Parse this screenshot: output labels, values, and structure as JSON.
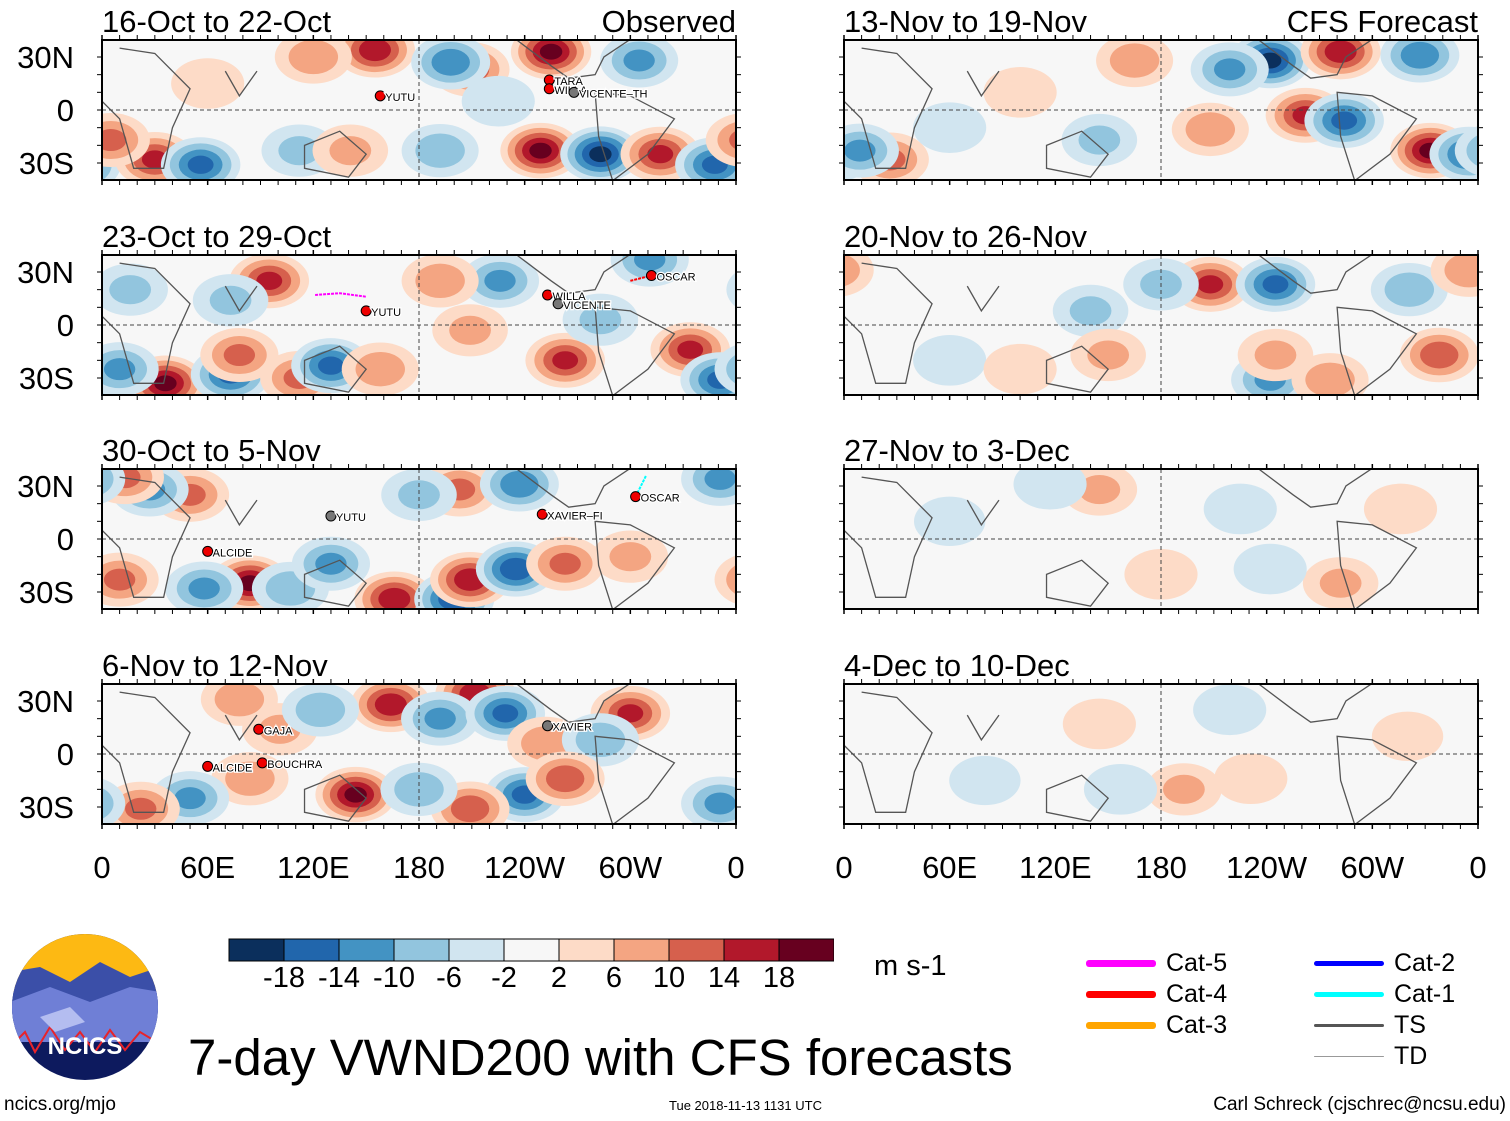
{
  "chart_data": {
    "type": "heatmap",
    "title": "7-day VWND200 with CFS forecasts",
    "units": "m s-1",
    "variable": "200-hPa meridional wind anomaly",
    "column_labels": [
      "Observed",
      "CFS Forecast"
    ],
    "lat_ticks": [
      "30N",
      "0",
      "30S"
    ],
    "lon_ticks": [
      "0",
      "60E",
      "120E",
      "180",
      "120W",
      "60W",
      "0"
    ],
    "colorbar": {
      "levels": [
        "-18",
        "-14",
        "-10",
        "-6",
        "-2",
        "2",
        "6",
        "10",
        "14",
        "18"
      ],
      "colors": [
        "#0b2f5c",
        "#2166ac",
        "#4393c3",
        "#92c5de",
        "#d1e5f0",
        "#f7f7f7",
        "#fddbc7",
        "#f4a582",
        "#d6604d",
        "#b2182b",
        "#67001f"
      ]
    },
    "panels": [
      {
        "title": "16-Oct to 22-Oct",
        "tag": "Observed",
        "col": 0,
        "row": 0,
        "anomalies": [
          [
            155,
            34,
            16
          ],
          [
            209,
            23,
            12
          ],
          [
            198,
            27,
            -12
          ],
          [
            249,
            -23,
            18
          ],
          [
            283,
            -25,
            -18
          ],
          [
            317,
            -25,
            14
          ],
          [
            348,
            -31,
            -14
          ],
          [
            30,
            -28,
            14
          ],
          [
            56,
            -31,
            -14
          ],
          [
            5,
            -17,
            10
          ],
          [
            255,
            33,
            18
          ],
          [
            305,
            28,
            -10
          ],
          [
            192,
            -23,
            -8
          ],
          [
            112,
            -23,
            -6
          ],
          [
            141,
            -23,
            6
          ],
          [
            120,
            30,
            8
          ],
          [
            225,
            5,
            -4
          ],
          [
            60,
            15,
            4
          ]
        ],
        "storms": [
          {
            "name": "YUTU",
            "lon": 158,
            "lat": 8,
            "cat": "Cat-4"
          },
          {
            "name": "TARA",
            "lon": 254,
            "lat": 17,
            "cat": "Cat-5"
          },
          {
            "name": "WILLA",
            "lon": 254,
            "lat": 12,
            "cat": "Cat-4"
          },
          {
            "name": "VICENTE–TH",
            "lon": 268,
            "lat": 10,
            "cat": "TS"
          }
        ]
      },
      {
        "title": "13-Nov to 19-Nov",
        "tag": "CFS Forecast",
        "col": 1,
        "row": 0,
        "anomalies": [
          [
            242,
            28,
            -18
          ],
          [
            282,
            33,
            16
          ],
          [
            262,
            -3,
            14
          ],
          [
            284,
            -6,
            -14
          ],
          [
            333,
            -23,
            18
          ],
          [
            355,
            -25,
            -14
          ],
          [
            219,
            23,
            -10
          ],
          [
            208,
            -11,
            8
          ],
          [
            165,
            28,
            8
          ],
          [
            327,
            31,
            -12
          ],
          [
            26,
            -28,
            10
          ],
          [
            9,
            -23,
            -10
          ],
          [
            145,
            -17,
            -6
          ],
          [
            100,
            10,
            4
          ],
          [
            60,
            -10,
            -4
          ]
        ],
        "storms": []
      },
      {
        "title": "23-Oct to 29-Oct",
        "col": 0,
        "row": 1,
        "anomalies": [
          [
            95,
            25,
            14
          ],
          [
            73,
            14,
            -6
          ],
          [
            36,
            -33,
            18
          ],
          [
            73,
            -28,
            -14
          ],
          [
            78,
            -17,
            10
          ],
          [
            112,
            -30,
            10
          ],
          [
            130,
            -23,
            -14
          ],
          [
            158,
            -25,
            8
          ],
          [
            226,
            25,
            -10
          ],
          [
            263,
            -20,
            14
          ],
          [
            209,
            -3,
            6
          ],
          [
            334,
            -14,
            14
          ],
          [
            351,
            -31,
            -14
          ],
          [
            311,
            37,
            -10
          ],
          [
            192,
            25,
            8
          ],
          [
            283,
            3,
            -6
          ],
          [
            16,
            20,
            -6
          ],
          [
            10,
            -25,
            -10
          ]
        ],
        "storms": [
          {
            "name": "YUTU",
            "lon": 150,
            "lat": 8,
            "cat": "Cat-5",
            "track": [
              [
                121,
                17
              ],
              [
                135,
                18
              ],
              [
                150,
                16
              ]
            ]
          },
          {
            "name": "WILLA",
            "lon": 253,
            "lat": 17,
            "cat": "Cat-3"
          },
          {
            "name": "VICENTE",
            "lon": 259,
            "lat": 12,
            "cat": "TS"
          },
          {
            "name": "OSCAR",
            "lon": 312,
            "lat": 28,
            "cat": "Cat-4",
            "track": [
              [
                300,
                25
              ],
              [
                312,
                28
              ]
            ]
          }
        ]
      },
      {
        "title": "20-Nov to 26-Nov",
        "col": 1,
        "row": 1,
        "anomalies": [
          [
            208,
            23,
            14
          ],
          [
            245,
            23,
            -14
          ],
          [
            180,
            23,
            -6
          ],
          [
            338,
            -17,
            12
          ],
          [
            242,
            -31,
            -10
          ],
          [
            276,
            -31,
            8
          ],
          [
            245,
            -17,
            6
          ],
          [
            140,
            8,
            -6
          ],
          [
            150,
            -17,
            6
          ],
          [
            321,
            20,
            -8
          ],
          [
            355,
            31,
            8
          ],
          [
            60,
            -20,
            -4
          ],
          [
            100,
            -25,
            4
          ]
        ],
        "storms": []
      },
      {
        "title": "30-Oct to 5-Nov",
        "col": 0,
        "row": 2,
        "anomalies": [
          [
            50,
            25,
            10
          ],
          [
            27,
            28,
            -10
          ],
          [
            13,
            35,
            10
          ],
          [
            84,
            -25,
            18
          ],
          [
            58,
            -28,
            -10
          ],
          [
            10,
            -23,
            10
          ],
          [
            107,
            -28,
            -8
          ],
          [
            166,
            -34,
            16
          ],
          [
            200,
            -34,
            -16
          ],
          [
            209,
            -23,
            16
          ],
          [
            235,
            -17,
            -16
          ],
          [
            263,
            -14,
            10
          ],
          [
            203,
            28,
            10
          ],
          [
            237,
            31,
            -12
          ],
          [
            351,
            34,
            -10
          ],
          [
            130,
            -14,
            -10
          ],
          [
            180,
            25,
            -6
          ],
          [
            300,
            -10,
            6
          ]
        ],
        "storms": [
          {
            "name": "YUTU",
            "lon": 130,
            "lat": 13,
            "cat": "TS"
          },
          {
            "name": "XAVIER–FI",
            "lon": 250,
            "lat": 14,
            "cat": "Cat-4"
          },
          {
            "name": "OSCAR",
            "lon": 303,
            "lat": 24,
            "cat": "Cat-1",
            "track": [
              [
                303,
                24
              ],
              [
                309,
                36
              ]
            ]
          },
          {
            "name": "ALCIDE",
            "lon": 60,
            "lat": -7,
            "cat": "Cat-4"
          }
        ]
      },
      {
        "title": "27-Nov to 3-Dec",
        "col": 1,
        "row": 2,
        "anomalies": [
          [
            145,
            28,
            6
          ],
          [
            117,
            31,
            -4
          ],
          [
            225,
            17,
            -4
          ],
          [
            282,
            -25,
            6
          ],
          [
            242,
            -17,
            -4
          ],
          [
            316,
            17,
            4
          ],
          [
            60,
            10,
            -3
          ],
          [
            180,
            -20,
            4
          ]
        ],
        "storms": []
      },
      {
        "title": "6-Nov to 12-Nov",
        "col": 0,
        "row": 3,
        "anomalies": [
          [
            164,
            28,
            16
          ],
          [
            212,
            34,
            16
          ],
          [
            192,
            20,
            -10
          ],
          [
            229,
            23,
            -14
          ],
          [
            252,
            6,
            8
          ],
          [
            300,
            23,
            14
          ],
          [
            283,
            8,
            -8
          ],
          [
            144,
            -23,
            18
          ],
          [
            240,
            -23,
            -14
          ],
          [
            263,
            -14,
            12
          ],
          [
            209,
            -31,
            12
          ],
          [
            180,
            -20,
            -8
          ],
          [
            84,
            -14,
            8
          ],
          [
            50,
            -25,
            -10
          ],
          [
            22,
            -31,
            10
          ],
          [
            351,
            -28,
            -10
          ],
          [
            101,
            14,
            6
          ],
          [
            124,
            25,
            -8
          ],
          [
            78,
            31,
            8
          ]
        ],
        "storms": [
          {
            "name": "GAJA",
            "lon": 89,
            "lat": 14,
            "cat": "Cat-4"
          },
          {
            "name": "BOUCHRA",
            "lon": 91,
            "lat": -5,
            "cat": "Cat-4"
          },
          {
            "name": "ALCIDE",
            "lon": 60,
            "lat": -7,
            "cat": "Cat-4"
          },
          {
            "name": "XAVIER",
            "lon": 253,
            "lat": 16,
            "cat": "TS"
          }
        ]
      },
      {
        "title": "4-Dec to 10-Dec",
        "col": 1,
        "row": 3,
        "anomalies": [
          [
            145,
            17,
            4
          ],
          [
            219,
            25,
            -4
          ],
          [
            193,
            -20,
            6
          ],
          [
            157,
            -20,
            -4
          ],
          [
            231,
            -14,
            4
          ],
          [
            80,
            -15,
            -3
          ],
          [
            320,
            10,
            3
          ]
        ],
        "storms": []
      }
    ]
  },
  "legend": {
    "items": [
      {
        "label": "Cat-5",
        "color": "#ff00ff",
        "w": 7
      },
      {
        "label": "Cat-4",
        "color": "#ff0000",
        "w": 7
      },
      {
        "label": "Cat-3",
        "color": "#ffa500",
        "w": 7
      },
      {
        "label": "Cat-2",
        "color": "#0000ff",
        "w": 5
      },
      {
        "label": "Cat-1",
        "color": "#00ffff",
        "w": 5
      },
      {
        "label": "TS",
        "color": "#555555",
        "w": 3
      },
      {
        "label": "TD",
        "color": "#999999",
        "w": 1
      }
    ]
  },
  "logo_text": "NCICS",
  "footer": {
    "url": "ncics.org/mjo",
    "timestamp": "Tue 2018-11-13 1131 UTC",
    "credit": "Carl Schreck (cjschrec@ncsu.edu)"
  }
}
